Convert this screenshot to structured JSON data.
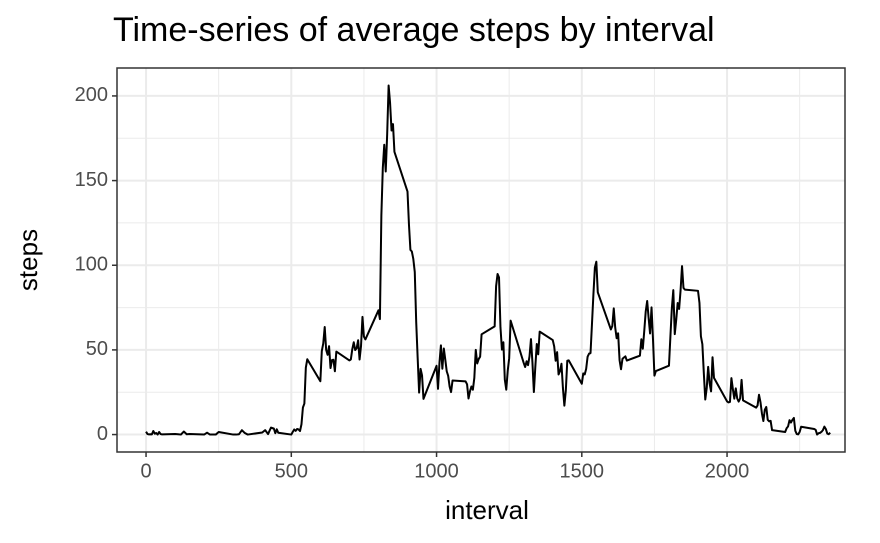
{
  "chart_data": {
    "type": "line",
    "title": "Time-series of average steps by interval",
    "x_label": "interval",
    "y_label": "steps",
    "xlim": [
      -100,
      2406
    ],
    "ylim": [
      -10.3,
      216.5
    ],
    "xticks": [
      0,
      500,
      1000,
      1500,
      2000
    ],
    "yticks": [
      0,
      50,
      100,
      150,
      200
    ],
    "x_minor_grid": [
      250,
      750,
      1250,
      1750,
      2250
    ],
    "y_minor_grid": [
      25,
      75,
      125,
      175
    ],
    "grid": true,
    "series": [
      {
        "color": "#000000",
        "x": [
          0,
          5,
          10,
          15,
          20,
          25,
          30,
          35,
          40,
          45,
          50,
          55,
          100,
          110,
          120,
          130,
          140,
          150,
          200,
          210,
          220,
          230,
          240,
          250,
          300,
          310,
          320,
          330,
          340,
          350,
          400,
          410,
          420,
          430,
          440,
          445,
          450,
          455,
          500,
          505,
          510,
          515,
          520,
          525,
          530,
          535,
          540,
          545,
          550,
          555,
          600,
          605,
          610,
          615,
          620,
          625,
          630,
          635,
          640,
          645,
          650,
          655,
          700,
          705,
          710,
          715,
          720,
          725,
          730,
          735,
          740,
          745,
          750,
          755,
          800,
          805,
          810,
          815,
          820,
          825,
          830,
          835,
          840,
          845,
          850,
          855,
          900,
          905,
          910,
          915,
          920,
          925,
          930,
          935,
          940,
          945,
          950,
          955,
          1000,
          1005,
          1010,
          1015,
          1020,
          1025,
          1030,
          1035,
          1040,
          1045,
          1050,
          1055,
          1100,
          1105,
          1110,
          1115,
          1120,
          1125,
          1130,
          1135,
          1140,
          1145,
          1150,
          1155,
          1200,
          1205,
          1210,
          1215,
          1220,
          1225,
          1230,
          1235,
          1240,
          1245,
          1250,
          1255,
          1300,
          1305,
          1310,
          1315,
          1320,
          1325,
          1330,
          1335,
          1340,
          1345,
          1350,
          1355,
          1400,
          1405,
          1410,
          1415,
          1420,
          1425,
          1430,
          1435,
          1440,
          1445,
          1450,
          1455,
          1500,
          1505,
          1510,
          1515,
          1520,
          1525,
          1530,
          1535,
          1540,
          1545,
          1550,
          1555,
          1600,
          1605,
          1610,
          1615,
          1620,
          1625,
          1630,
          1635,
          1640,
          1645,
          1650,
          1655,
          1700,
          1705,
          1710,
          1715,
          1720,
          1725,
          1730,
          1735,
          1740,
          1745,
          1750,
          1755,
          1800,
          1805,
          1810,
          1815,
          1820,
          1825,
          1830,
          1835,
          1840,
          1845,
          1850,
          1855,
          1900,
          1905,
          1910,
          1915,
          1920,
          1925,
          1930,
          1935,
          1940,
          1945,
          1950,
          1955,
          2000,
          2005,
          2010,
          2015,
          2020,
          2025,
          2030,
          2035,
          2040,
          2045,
          2050,
          2055,
          2100,
          2105,
          2110,
          2115,
          2120,
          2125,
          2130,
          2135,
          2140,
          2145,
          2150,
          2155,
          2200,
          2205,
          2210,
          2215,
          2220,
          2225,
          2230,
          2235,
          2240,
          2245,
          2250,
          2255,
          2300,
          2305,
          2310,
          2315,
          2320,
          2325,
          2330,
          2335,
          2340,
          2345,
          2350,
          2355
        ],
        "values": [
          1.7,
          0.3,
          0.1,
          0.2,
          0.1,
          2.1,
          0.5,
          0.9,
          0,
          1.5,
          0.3,
          0.1,
          0.3,
          0.2,
          0,
          1.8,
          0.2,
          0.3,
          0,
          1.1,
          0,
          0,
          0,
          1.5,
          0,
          0,
          0.2,
          2.6,
          0.9,
          0,
          1.2,
          2.6,
          0.3,
          4.1,
          3.5,
          0.8,
          3.1,
          1.1,
          0,
          1.6,
          3,
          2.2,
          3.3,
          3,
          2.1,
          6.1,
          16,
          18.3,
          39.5,
          44.5,
          31.5,
          49.3,
          53.8,
          63.5,
          50,
          47.1,
          52.2,
          39.3,
          44,
          44.2,
          37.4,
          49,
          43.8,
          44.4,
          50.5,
          54.5,
          49.9,
          51,
          55.7,
          44.3,
          52.3,
          69.5,
          57.8,
          56.2,
          73.4,
          68.2,
          129.4,
          157.5,
          171.2,
          155.4,
          177.3,
          206.2,
          195.9,
          179.6,
          183.4,
          167,
          143.5,
          124,
          109.1,
          108.1,
          103.7,
          96,
          66.2,
          45.2,
          24.8,
          38.8,
          35,
          21.1,
          40.6,
          27,
          42.4,
          52.7,
          38.9,
          50.8,
          44.3,
          37.4,
          34.7,
          28.3,
          25.1,
          31.9,
          31.4,
          29.7,
          21.3,
          25.5,
          28.4,
          26.5,
          33.4,
          50,
          42,
          44.6,
          46,
          59.2,
          63.9,
          87.7,
          94.8,
          92.8,
          63.4,
          50.2,
          54.5,
          32.4,
          26.5,
          37.7,
          45.1,
          67.3,
          42.3,
          39.9,
          43.3,
          41,
          46.2,
          56.4,
          42.8,
          25.1,
          40,
          53.5,
          47.4,
          60.8,
          55.8,
          52,
          43.6,
          48.7,
          35.5,
          37.5,
          41.8,
          27.5,
          17.1,
          26.1,
          43.6,
          43.8,
          30,
          36.1,
          35.5,
          38.8,
          46,
          47.8,
          48.1,
          65.3,
          82.9,
          98.7,
          102.1,
          84,
          62.1,
          64.1,
          74.5,
          63.2,
          56.9,
          59.8,
          43.9,
          38.6,
          44.7,
          45.5,
          46.2,
          43.7,
          46.6,
          56.3,
          50.7,
          61.2,
          72.7,
          78.9,
          68.9,
          59.7,
          75.1,
          56.5,
          34.8,
          37.5,
          40.7,
          58,
          74.7,
          85.3,
          59.3,
          67.8,
          77.7,
          74.2,
          85.3,
          99.5,
          86.6,
          85.6,
          84.9,
          77.8,
          58,
          53.4,
          36.3,
          20.7,
          27.4,
          40,
          30.2,
          25.5,
          45.7,
          33.5,
          19.6,
          19,
          19.3,
          33.3,
          26.8,
          21.2,
          27.3,
          21.3,
          19.5,
          21.3,
          32.3,
          20.2,
          15.9,
          17.2,
          23.5,
          19.2,
          12.5,
          8,
          14.7,
          16.3,
          8.7,
          7.8,
          8.1,
          2.6,
          1.5,
          3.7,
          4.8,
          8.5,
          7.1,
          8.7,
          9.8,
          2.2,
          0.3,
          0.1,
          1.6,
          4.6,
          3.3,
          2.8,
          0,
          0.8,
          1,
          1.6,
          2.6,
          4.7,
          3.3,
          0.6,
          0.2,
          1.1
        ]
      }
    ]
  }
}
